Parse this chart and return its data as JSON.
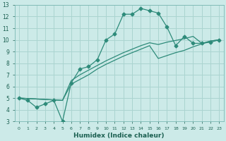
{
  "line1_x": [
    0,
    1,
    2,
    3,
    4,
    5,
    6,
    7,
    8,
    9,
    10,
    11,
    12,
    13,
    14,
    15,
    16,
    17,
    18,
    19,
    20,
    21,
    22,
    23
  ],
  "line1_y": [
    5.0,
    4.8,
    4.2,
    4.5,
    4.8,
    3.0,
    6.3,
    7.5,
    7.7,
    8.3,
    10.0,
    10.5,
    12.2,
    12.2,
    12.7,
    12.5,
    12.3,
    11.1,
    9.5,
    10.3,
    9.7,
    9.7,
    9.8,
    10.0
  ],
  "line2_x": [
    0,
    5,
    6,
    7,
    8,
    9,
    10,
    11,
    12,
    13,
    14,
    15,
    16,
    17,
    18,
    19,
    20,
    21,
    22,
    23
  ],
  "line2_y": [
    5.0,
    4.8,
    6.5,
    7.0,
    7.4,
    7.8,
    8.2,
    8.55,
    8.9,
    9.2,
    9.5,
    9.75,
    9.6,
    9.8,
    9.95,
    10.1,
    10.3,
    9.7,
    9.9,
    10.0
  ],
  "line3_x": [
    0,
    5,
    6,
    7,
    8,
    9,
    10,
    11,
    12,
    13,
    14,
    15,
    16,
    17,
    18,
    19,
    20,
    21,
    22,
    23
  ],
  "line3_y": [
    5.0,
    4.8,
    6.2,
    6.6,
    7.0,
    7.5,
    7.9,
    8.25,
    8.6,
    8.9,
    9.2,
    9.5,
    8.4,
    8.65,
    8.9,
    9.1,
    9.4,
    9.65,
    9.9,
    10.0
  ],
  "line_color": "#2e8b7a",
  "bg_color": "#cceae8",
  "grid_color": "#aad4d0",
  "xlabel": "Humidex (Indice chaleur)",
  "ylim": [
    3,
    13
  ],
  "xlim": [
    -0.5,
    23.5
  ],
  "yticks": [
    3,
    4,
    5,
    6,
    7,
    8,
    9,
    10,
    11,
    12,
    13
  ],
  "xticks": [
    0,
    1,
    2,
    3,
    4,
    5,
    6,
    7,
    8,
    9,
    10,
    11,
    12,
    13,
    14,
    15,
    16,
    17,
    18,
    19,
    20,
    21,
    22,
    23
  ],
  "xtick_labels": [
    "0",
    "1",
    "2",
    "3",
    "4",
    "5",
    "6",
    "7",
    "8",
    "9",
    "10",
    "11",
    "12",
    "13",
    "14",
    "15",
    "16",
    "17",
    "18",
    "19",
    "20",
    "21",
    "22",
    "23"
  ],
  "marker_style": "D",
  "marker_size": 2.5,
  "lw": 0.9
}
